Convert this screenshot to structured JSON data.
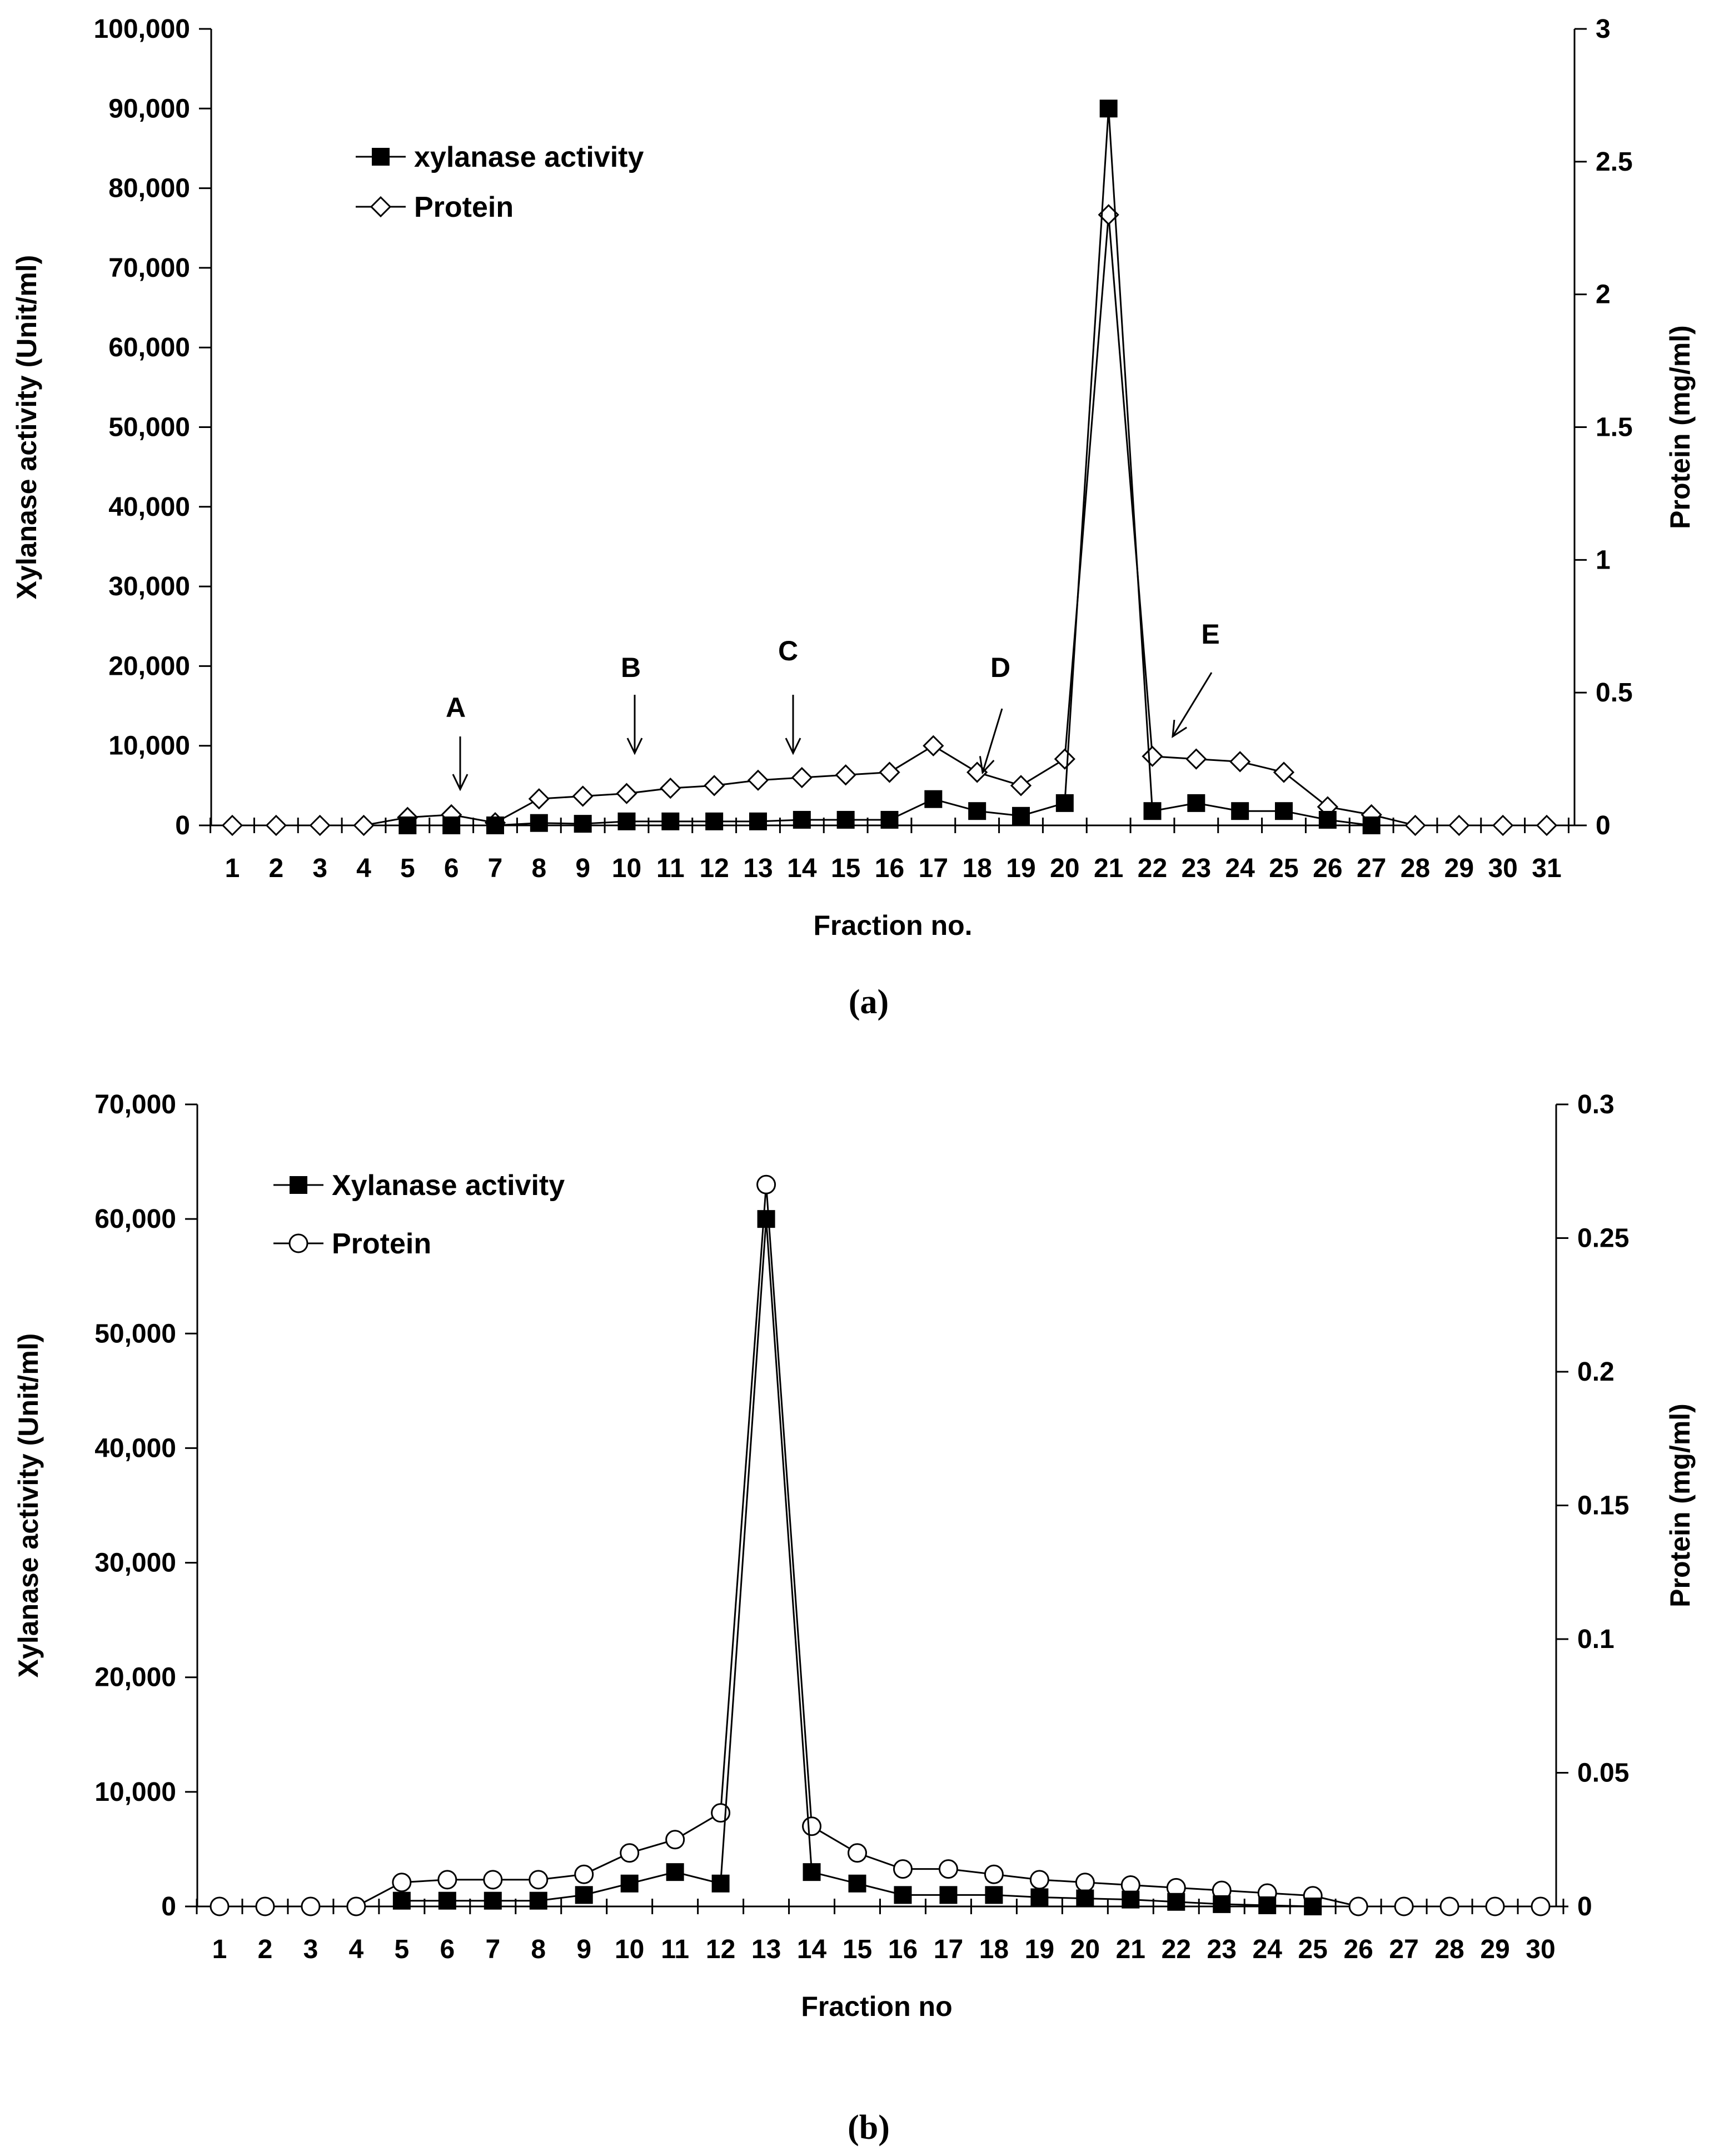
{
  "figure": {
    "captions": [
      "(a)",
      "(b)"
    ]
  },
  "chart_data": [
    {
      "type": "line",
      "panel": "(a)",
      "xlabel": "Fraction no.",
      "ylabel": "Xylanase activity (Unit/ml)",
      "y2label": "Protein (mg/ml)",
      "categories": [
        "1",
        "2",
        "3",
        "4",
        "5",
        "6",
        "7",
        "8",
        "9",
        "10",
        "11",
        "12",
        "13",
        "14",
        "15",
        "16",
        "17",
        "18",
        "19",
        "20",
        "21",
        "22",
        "23",
        "24",
        "25",
        "26",
        "27",
        "28",
        "29",
        "30",
        "31"
      ],
      "ylim": [
        0,
        100000
      ],
      "y_ticks": [
        0,
        10000,
        20000,
        30000,
        40000,
        50000,
        60000,
        70000,
        80000,
        90000,
        100000
      ],
      "y_tick_labels": [
        "0",
        "10,000",
        "20,000",
        "30,000",
        "40,000",
        "50,000",
        "60,000",
        "70,000",
        "80,000",
        "90,000",
        "100,000"
      ],
      "y2lim": [
        0,
        3
      ],
      "y2_ticks": [
        0,
        0.5,
        1,
        1.5,
        2,
        2.5,
        3
      ],
      "y2_tick_labels": [
        "0",
        "0.5",
        "1",
        "1.5",
        "2",
        "2.5",
        "3"
      ],
      "legend_position": "top-left",
      "series": [
        {
          "name": "xylanase activity",
          "axis": "left",
          "marker": "filled-square",
          "x": [
            5,
            6,
            7,
            8,
            9,
            10,
            11,
            12,
            13,
            14,
            15,
            16,
            17,
            18,
            19,
            20,
            21,
            22,
            23,
            24,
            25,
            26,
            27
          ],
          "values": [
            0,
            0,
            0,
            300,
            200,
            500,
            500,
            500,
            500,
            700,
            700,
            700,
            3300,
            1800,
            1200,
            2800,
            90000,
            1800,
            2800,
            1800,
            1800,
            700,
            0
          ]
        },
        {
          "name": "Protein",
          "axis": "right",
          "marker": "open-diamond",
          "x": [
            1,
            2,
            3,
            4,
            5,
            6,
            7,
            8,
            9,
            10,
            11,
            12,
            13,
            14,
            15,
            16,
            17,
            18,
            19,
            20,
            21,
            22,
            23,
            24,
            25,
            26,
            27,
            28,
            29,
            30,
            31
          ],
          "values": [
            0,
            0,
            0,
            0,
            0.03,
            0.04,
            0.01,
            0.1,
            0.11,
            0.12,
            0.14,
            0.15,
            0.17,
            0.18,
            0.19,
            0.2,
            0.3,
            0.2,
            0.15,
            0.25,
            2.3,
            0.26,
            0.25,
            0.24,
            0.2,
            0.07,
            0.04,
            0,
            0,
            0,
            0
          ]
        }
      ],
      "annotations": [
        {
          "label": "A",
          "fraction": 6
        },
        {
          "label": "B",
          "fraction": 10
        },
        {
          "label": "C",
          "fraction": 14
        },
        {
          "label": "D",
          "fraction": 18
        },
        {
          "label": "E",
          "fraction": 22
        }
      ]
    },
    {
      "type": "line",
      "panel": "(b)",
      "xlabel": "Fraction no",
      "ylabel": "Xylanase activity (Unit/ml)",
      "y2label": "Protein (mg/ml)",
      "categories": [
        "1",
        "2",
        "3",
        "4",
        "5",
        "6",
        "7",
        "8",
        "9",
        "10",
        "11",
        "12",
        "13",
        "14",
        "15",
        "16",
        "17",
        "18",
        "19",
        "20",
        "21",
        "22",
        "23",
        "24",
        "25",
        "26",
        "27",
        "28",
        "29",
        "30"
      ],
      "ylim": [
        0,
        70000
      ],
      "y_ticks": [
        0,
        10000,
        20000,
        30000,
        40000,
        50000,
        60000,
        70000
      ],
      "y_tick_labels": [
        "0",
        "10,000",
        "20,000",
        "30,000",
        "40,000",
        "50,000",
        "60,000",
        "70,000"
      ],
      "y2lim": [
        0,
        0.3
      ],
      "y2_ticks": [
        0,
        0.05,
        0.1,
        0.15,
        0.2,
        0.25,
        0.3
      ],
      "y2_tick_labels": [
        "0",
        "0.05",
        "0.1",
        "0.15",
        "0.2",
        "0.25",
        "0.3"
      ],
      "legend_position": "top-left",
      "series": [
        {
          "name": "Xylanase activity",
          "axis": "left",
          "marker": "filled-square",
          "x": [
            5,
            6,
            7,
            8,
            9,
            10,
            11,
            12,
            13,
            14,
            15,
            16,
            17,
            18,
            19,
            20,
            21,
            22,
            23,
            24,
            25
          ],
          "values": [
            500,
            500,
            500,
            500,
            1000,
            2000,
            3000,
            2000,
            60000,
            3000,
            2000,
            1000,
            1000,
            1000,
            800,
            700,
            600,
            400,
            200,
            100,
            0
          ]
        },
        {
          "name": "Protein",
          "axis": "right",
          "marker": "open-circle",
          "x": [
            1,
            2,
            3,
            4,
            5,
            6,
            7,
            8,
            9,
            10,
            11,
            12,
            13,
            14,
            15,
            16,
            17,
            18,
            19,
            20,
            21,
            22,
            23,
            24,
            25,
            26,
            27,
            28,
            29,
            30
          ],
          "values": [
            0,
            0,
            0,
            0,
            0.009,
            0.01,
            0.01,
            0.01,
            0.012,
            0.02,
            0.025,
            0.035,
            0.27,
            0.03,
            0.02,
            0.014,
            0.014,
            0.012,
            0.01,
            0.009,
            0.008,
            0.007,
            0.006,
            0.005,
            0.004,
            0,
            0,
            0,
            0,
            0
          ]
        }
      ],
      "annotations": []
    }
  ]
}
